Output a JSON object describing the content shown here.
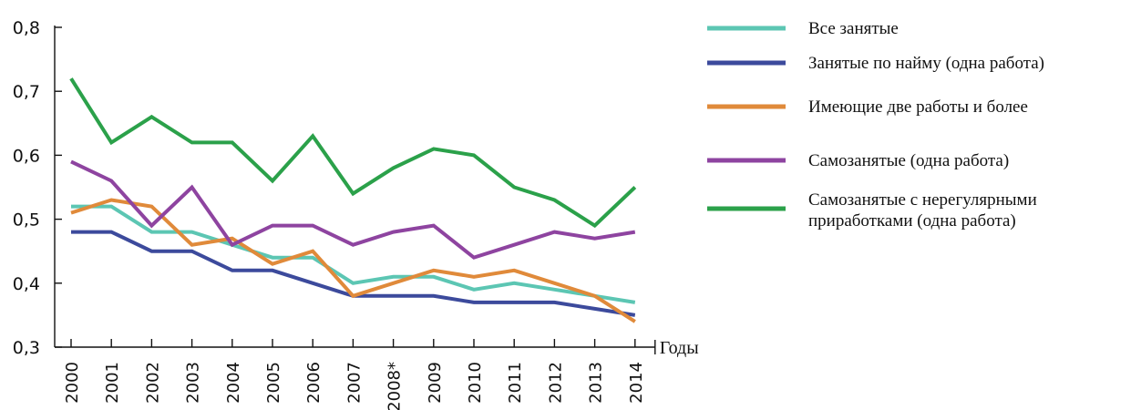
{
  "chart_data": {
    "type": "line",
    "xlabel": "Годы",
    "ylabel": "",
    "ylim": [
      0.3,
      0.8
    ],
    "yticks": [
      "0,3",
      "0,4",
      "0,5",
      "0,6",
      "0,7",
      "0,8"
    ],
    "ytick_values": [
      0.3,
      0.4,
      0.5,
      0.6,
      0.7,
      0.8
    ],
    "categories": [
      "2000",
      "2001",
      "2002",
      "2003",
      "2004",
      "2005",
      "2006",
      "2007",
      "2008*",
      "2009",
      "2010",
      "2011",
      "2012",
      "2013",
      "2014"
    ],
    "grid": false,
    "legend_position": "right",
    "series": [
      {
        "name": "Все занятые",
        "color": "#5cc6b3",
        "values": [
          0.52,
          0.52,
          0.48,
          0.48,
          0.46,
          0.44,
          0.44,
          0.4,
          0.41,
          0.41,
          0.39,
          0.4,
          0.39,
          0.38,
          0.37
        ]
      },
      {
        "name": "Занятые по найму (одна работа)",
        "color": "#3c4a9c",
        "values": [
          0.48,
          0.48,
          0.45,
          0.45,
          0.42,
          0.42,
          0.4,
          0.38,
          0.38,
          0.38,
          0.37,
          0.37,
          0.37,
          0.36,
          0.35
        ]
      },
      {
        "name": "Имеющие две работы и более",
        "color": "#e08a3a",
        "values": [
          0.51,
          0.53,
          0.52,
          0.46,
          0.47,
          0.43,
          0.45,
          0.38,
          0.4,
          0.42,
          0.41,
          0.42,
          0.4,
          0.38,
          0.34
        ]
      },
      {
        "name": "Самозанятые (одна работа)",
        "color": "#8e44a0",
        "values": [
          0.59,
          0.56,
          0.49,
          0.55,
          0.46,
          0.49,
          0.49,
          0.46,
          0.48,
          0.49,
          0.44,
          0.46,
          0.48,
          0.47,
          0.48
        ]
      },
      {
        "name": "Самозанятые с нерегулярными приработками (одна работа)",
        "name_lines": [
          "Самозанятые с нерегулярными",
          "приработками (одна работа)"
        ],
        "color": "#2ba14a",
        "values": [
          0.72,
          0.62,
          0.66,
          0.62,
          0.62,
          0.56,
          0.63,
          0.54,
          0.58,
          0.61,
          0.6,
          0.55,
          0.53,
          0.49,
          0.55
        ]
      }
    ]
  }
}
